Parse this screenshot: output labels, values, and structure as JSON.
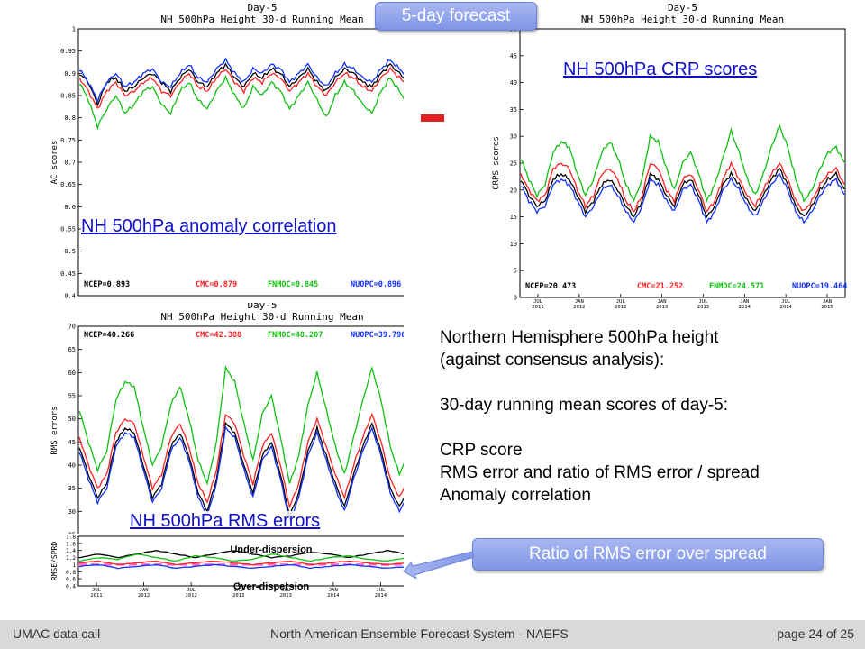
{
  "header_badge": "5-day forecast",
  "minus_sign_color": "#e02020",
  "colors": {
    "NCEP": "#000000",
    "CMC": "#ff2020",
    "FNMOC": "#10c010",
    "NUOPC": "#1030ff",
    "link": "#1010c8",
    "badge": "#8fa2ea",
    "ratio_ref": "#ff66cc"
  },
  "description": {
    "lines": [
      "Northern Hemisphere 500hPa height",
      "(against consensus analysis):",
      "",
      "30-day running mean scores of day-5:",
      "",
      "CRP score",
      "RMS error and ratio of RMS error / spread",
      "Anomaly correlation"
    ]
  },
  "ratio_badge": "Ratio of RMS error over spread",
  "footer": {
    "left": "UMAC data call",
    "center": "North American Ensemble Forecast System - NAEFS",
    "right": "page 24 of 25"
  },
  "chart_data": [
    {
      "id": "ac",
      "type": "line",
      "title_top": "Day-5",
      "title": "NH 500hPa Height 30-d Running Mean",
      "link_label": "NH 500hPa anomaly correlation",
      "ylabel": "AC scores",
      "ylim": [
        0.4,
        1.0
      ],
      "yticks": [
        "0.4",
        "0.45",
        "0.5",
        "0.55",
        "0.6",
        "0.65",
        "0.7",
        "0.75",
        "0.8",
        "0.85",
        "0.9",
        "0.95",
        "1"
      ],
      "legend": [
        {
          "text": "NCEP=0.893",
          "color": "#000000"
        },
        {
          "text": "CMC=0.879",
          "color": "#ff2020"
        },
        {
          "text": "FNMOC=0.845",
          "color": "#10c010"
        },
        {
          "text": "NUOPC=0.896",
          "color": "#1030ff"
        }
      ],
      "series": [
        {
          "name": "NCEP",
          "color": "#000000",
          "values": [
            0.9,
            0.88,
            0.83,
            0.88,
            0.89,
            0.86,
            0.87,
            0.89,
            0.9,
            0.88,
            0.86,
            0.89,
            0.91,
            0.88,
            0.87,
            0.9,
            0.92,
            0.89,
            0.87,
            0.9,
            0.89,
            0.91,
            0.9,
            0.87,
            0.89,
            0.91,
            0.88,
            0.86,
            0.89,
            0.91,
            0.9,
            0.88,
            0.87,
            0.9,
            0.92,
            0.9,
            0.88,
            0.91,
            0.93,
            0.94,
            0.89
          ]
        },
        {
          "name": "CMC",
          "color": "#ff2020",
          "values": [
            0.89,
            0.86,
            0.82,
            0.86,
            0.88,
            0.85,
            0.86,
            0.88,
            0.89,
            0.86,
            0.85,
            0.88,
            0.9,
            0.87,
            0.86,
            0.89,
            0.91,
            0.88,
            0.86,
            0.89,
            0.88,
            0.9,
            0.89,
            0.86,
            0.88,
            0.9,
            0.87,
            0.85,
            0.88,
            0.9,
            0.89,
            0.87,
            0.86,
            0.89,
            0.91,
            0.89,
            0.87,
            0.9,
            0.92,
            0.93,
            0.88
          ]
        },
        {
          "name": "FNMOC",
          "color": "#10c010",
          "values": [
            0.88,
            0.84,
            0.78,
            0.82,
            0.85,
            0.81,
            0.83,
            0.86,
            0.87,
            0.83,
            0.81,
            0.86,
            0.88,
            0.84,
            0.82,
            0.86,
            0.89,
            0.85,
            0.82,
            0.87,
            0.85,
            0.88,
            0.86,
            0.82,
            0.85,
            0.88,
            0.84,
            0.8,
            0.85,
            0.88,
            0.86,
            0.83,
            0.81,
            0.86,
            0.89,
            0.86,
            0.83,
            0.88,
            0.9,
            0.92,
            0.86
          ]
        },
        {
          "name": "NUOPC",
          "color": "#1030ff",
          "values": [
            0.91,
            0.88,
            0.84,
            0.88,
            0.9,
            0.87,
            0.88,
            0.9,
            0.91,
            0.88,
            0.87,
            0.9,
            0.92,
            0.89,
            0.88,
            0.91,
            0.93,
            0.9,
            0.88,
            0.91,
            0.9,
            0.92,
            0.91,
            0.88,
            0.9,
            0.92,
            0.89,
            0.87,
            0.9,
            0.92,
            0.91,
            0.89,
            0.88,
            0.91,
            0.93,
            0.91,
            0.89,
            0.92,
            0.94,
            0.95,
            0.9
          ]
        }
      ]
    },
    {
      "id": "crps",
      "type": "line",
      "title_top": "Day-5",
      "title": "NH 500hPa Height 30-d Running Mean",
      "link_label": "NH 500hPa CRP scores",
      "ylabel": "CRPS scores",
      "ylim": [
        0,
        50
      ],
      "yticks": [
        "0",
        "5",
        "10",
        "15",
        "20",
        "25",
        "30",
        "35",
        "40",
        "45",
        "50"
      ],
      "xticks": [
        {
          "label": "JUL",
          "year": "2011"
        },
        {
          "label": "JAN",
          "year": "2012"
        },
        {
          "label": "JUL",
          "year": "2012"
        },
        {
          "label": "JAN",
          "year": "2013"
        },
        {
          "label": "JUL",
          "year": "2013"
        },
        {
          "label": "JAN",
          "year": "2014"
        },
        {
          "label": "JUL",
          "year": "2014"
        },
        {
          "label": "JAN",
          "year": "2015"
        }
      ],
      "legend": [
        {
          "text": "NCEP=20.473",
          "color": "#000000"
        },
        {
          "text": "CMC=21.252",
          "color": "#ff2020"
        },
        {
          "text": "FNMOC=24.571",
          "color": "#10c010"
        },
        {
          "text": "NUOPC=19.464",
          "color": "#1030ff"
        }
      ],
      "series": [
        {
          "name": "NCEP",
          "color": "#000000",
          "values": [
            22,
            19,
            17,
            18,
            22,
            23,
            22,
            19,
            16,
            18,
            21,
            22,
            20,
            17,
            15,
            18,
            23,
            22,
            19,
            17,
            21,
            22,
            19,
            15,
            17,
            21,
            23,
            21,
            18,
            16,
            19,
            22,
            24,
            21,
            17,
            15,
            17,
            20,
            22,
            23,
            20
          ]
        },
        {
          "name": "CMC",
          "color": "#ff2020",
          "values": [
            23,
            20,
            18,
            19,
            24,
            25,
            24,
            20,
            17,
            19,
            23,
            24,
            22,
            18,
            16,
            19,
            25,
            24,
            20,
            18,
            22,
            23,
            20,
            16,
            18,
            22,
            25,
            22,
            19,
            17,
            20,
            23,
            25,
            22,
            18,
            16,
            18,
            21,
            23,
            24,
            21
          ]
        },
        {
          "name": "FNMOC",
          "color": "#10c010",
          "values": [
            26,
            22,
            19,
            21,
            27,
            29,
            28,
            23,
            19,
            22,
            27,
            29,
            26,
            21,
            18,
            22,
            30,
            29,
            24,
            20,
            25,
            27,
            23,
            18,
            21,
            26,
            31,
            27,
            22,
            19,
            23,
            28,
            32,
            28,
            22,
            18,
            20,
            24,
            27,
            28,
            25
          ]
        },
        {
          "name": "NUOPC",
          "color": "#1030ff",
          "values": [
            21,
            18,
            16,
            17,
            21,
            22,
            21,
            18,
            15,
            17,
            20,
            21,
            19,
            16,
            14,
            17,
            22,
            21,
            18,
            16,
            20,
            21,
            18,
            14,
            16,
            20,
            22,
            20,
            17,
            15,
            18,
            21,
            23,
            20,
            16,
            14,
            16,
            19,
            21,
            22,
            19
          ]
        }
      ]
    },
    {
      "id": "rms",
      "type": "line",
      "title_top": "Day-5",
      "title": "NH 500hPa Height 30-d Running Mean",
      "link_label": "NH 500hPa RMS errors",
      "ylabel": "RMS errors",
      "ylim": [
        25,
        70
      ],
      "yticks": [
        "25",
        "30",
        "35",
        "40",
        "45",
        "50",
        "55",
        "60",
        "65",
        "70"
      ],
      "legend": [
        {
          "text": "NCEP=40.266",
          "color": "#000000"
        },
        {
          "text": "CMC=42.388",
          "color": "#ff2020"
        },
        {
          "text": "FNMOC=48.207",
          "color": "#10c010"
        },
        {
          "text": "NUOPC=39.796",
          "color": "#1030ff"
        }
      ],
      "series": [
        {
          "name": "NCEP",
          "color": "#000000",
          "values": [
            44,
            38,
            33,
            36,
            45,
            48,
            47,
            40,
            33,
            36,
            44,
            47,
            42,
            34,
            30,
            37,
            49,
            47,
            40,
            34,
            42,
            45,
            38,
            29,
            34,
            43,
            48,
            42,
            36,
            31,
            38,
            44,
            49,
            43,
            35,
            31,
            35,
            40,
            44,
            46,
            40
          ]
        },
        {
          "name": "CMC",
          "color": "#ff2020",
          "values": [
            46,
            40,
            35,
            38,
            47,
            50,
            49,
            42,
            35,
            38,
            46,
            49,
            44,
            36,
            32,
            39,
            51,
            49,
            42,
            36,
            44,
            47,
            40,
            31,
            36,
            45,
            50,
            44,
            38,
            33,
            40,
            46,
            51,
            45,
            37,
            33,
            37,
            42,
            46,
            48,
            42
          ]
        },
        {
          "name": "FNMOC",
          "color": "#10c010",
          "values": [
            52,
            45,
            39,
            43,
            54,
            58,
            57,
            48,
            40,
            44,
            53,
            57,
            50,
            41,
            36,
            45,
            61,
            58,
            49,
            41,
            51,
            55,
            46,
            36,
            42,
            53,
            60,
            52,
            44,
            38,
            46,
            54,
            61,
            54,
            44,
            38,
            43,
            49,
            54,
            57,
            49
          ]
        },
        {
          "name": "NUOPC",
          "color": "#1030ff",
          "values": [
            43,
            37,
            32,
            35,
            44,
            47,
            46,
            39,
            32,
            35,
            43,
            46,
            41,
            33,
            29,
            36,
            48,
            46,
            39,
            33,
            41,
            44,
            37,
            28,
            33,
            42,
            47,
            41,
            35,
            30,
            37,
            43,
            48,
            42,
            34,
            30,
            34,
            39,
            43,
            45,
            39
          ]
        }
      ]
    },
    {
      "id": "ratio",
      "type": "line",
      "ylabel": "RMSE/SPRD",
      "ylim": [
        0.4,
        1.8
      ],
      "yticks": [
        "0.4",
        "0.6",
        "0.8",
        "1",
        "1.2",
        "1.4",
        "1.6",
        "1.8"
      ],
      "xticks": [
        {
          "label": "JUL",
          "year": "2011"
        },
        {
          "label": "JAN",
          "year": "2012"
        },
        {
          "label": "JUL",
          "year": "2012"
        },
        {
          "label": "JAN",
          "year": "2013"
        },
        {
          "label": "JUL",
          "year": "2013"
        },
        {
          "label": "JAN",
          "year": "2014"
        },
        {
          "label": "JUL",
          "year": "2014"
        },
        {
          "label": "JAN",
          "year": "2015"
        }
      ],
      "annotation_top": "Under-dispersion",
      "annotation_bottom": "Over-dispersion",
      "reference_value": 1.0,
      "series": [
        {
          "name": "NCEP",
          "color": "#000000",
          "values": [
            1.2,
            1.3,
            1.2,
            1.3,
            1.4,
            1.3,
            1.2,
            1.3,
            1.4,
            1.3,
            1.2,
            1.25,
            1.35,
            1.3,
            1.2,
            1.3,
            1.4,
            1.3,
            1.25,
            1.3
          ]
        },
        {
          "name": "CMC",
          "color": "#ff2020",
          "values": [
            1.05,
            1.1,
            1.0,
            1.05,
            1.1,
            1.0,
            1.05,
            1.1,
            1.05,
            1.0,
            1.05,
            1.1,
            1.0,
            1.05,
            1.1,
            1.05,
            1.0,
            1.05,
            1.1,
            1.05
          ]
        },
        {
          "name": "FNMOC",
          "color": "#10c010",
          "values": [
            1.1,
            1.2,
            1.15,
            1.3,
            1.2,
            1.1,
            1.25,
            1.2,
            1.1,
            1.15,
            1.3,
            1.2,
            1.1,
            1.2,
            1.25,
            1.15,
            1.1,
            1.2,
            1.3,
            1.2
          ]
        },
        {
          "name": "NUOPC",
          "color": "#1030ff",
          "values": [
            0.95,
            1.0,
            0.9,
            0.95,
            1.0,
            0.9,
            0.95,
            1.0,
            0.95,
            0.9,
            0.95,
            1.0,
            0.9,
            0.95,
            1.0,
            0.95,
            0.9,
            0.95,
            1.0,
            0.95
          ]
        }
      ]
    }
  ]
}
